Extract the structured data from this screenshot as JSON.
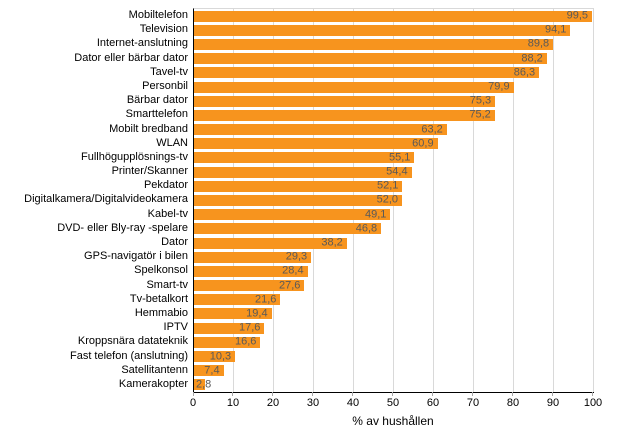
{
  "chart_data": {
    "type": "bar",
    "orientation": "horizontal",
    "title": "",
    "xlabel": "% av hushållen",
    "ylabel": "",
    "xlim": [
      0,
      100
    ],
    "xticks": [
      0,
      10,
      20,
      30,
      40,
      50,
      60,
      70,
      80,
      90,
      100
    ],
    "grid": "vertical",
    "legend": "none",
    "categories": [
      "Mobiltelefon",
      "Television",
      "Internet-anslutning",
      "Dator eller bärbar dator",
      "Tavel-tv",
      "Personbil",
      "Bärbar dator",
      "Smarttelefon",
      "Mobilt bredband",
      "WLAN",
      "Fullhögupplösnings-tv",
      "Printer/Skanner",
      "Pekdator",
      "Digitalkamera/Digitalvideokamera",
      "Kabel-tv",
      "DVD- eller Bly-ray -spelare",
      "Dator",
      "GPS-navigatör i bilen",
      "Spelkonsol",
      "Smart-tv",
      "Tv-betalkort",
      "Hemmabio",
      "IPTV",
      "Kroppsnära datateknik",
      "Fast telefon (anslutning)",
      "Satellitantenn",
      "Kamerakopter"
    ],
    "values": [
      99.5,
      94.1,
      89.8,
      88.2,
      86.3,
      79.9,
      75.3,
      75.2,
      63.2,
      60.9,
      55.1,
      54.4,
      52.1,
      52.0,
      49.1,
      46.8,
      38.2,
      29.3,
      28.4,
      27.6,
      21.6,
      19.4,
      17.6,
      16.6,
      10.3,
      7.4,
      2.8
    ],
    "value_labels": [
      "99,5",
      "94,1",
      "89,8",
      "88,2",
      "86,3",
      "79,9",
      "75,3",
      "75,2",
      "63,2",
      "60,9",
      "55,1",
      "54,4",
      "52,1",
      "52,0",
      "49,1",
      "46,8",
      "38,2",
      "29,3",
      "28,4",
      "27,6",
      "21,6",
      "19,4",
      "17,6",
      "16,6",
      "10,3",
      "7,4",
      "2,8"
    ],
    "colors": {
      "bar": "#F7941E",
      "value_label": "#595959",
      "gridline": "#D9D9D9",
      "axis_line": "#000000",
      "tick_mark": "#A6A6A6",
      "background": "#FFFFFF"
    }
  }
}
